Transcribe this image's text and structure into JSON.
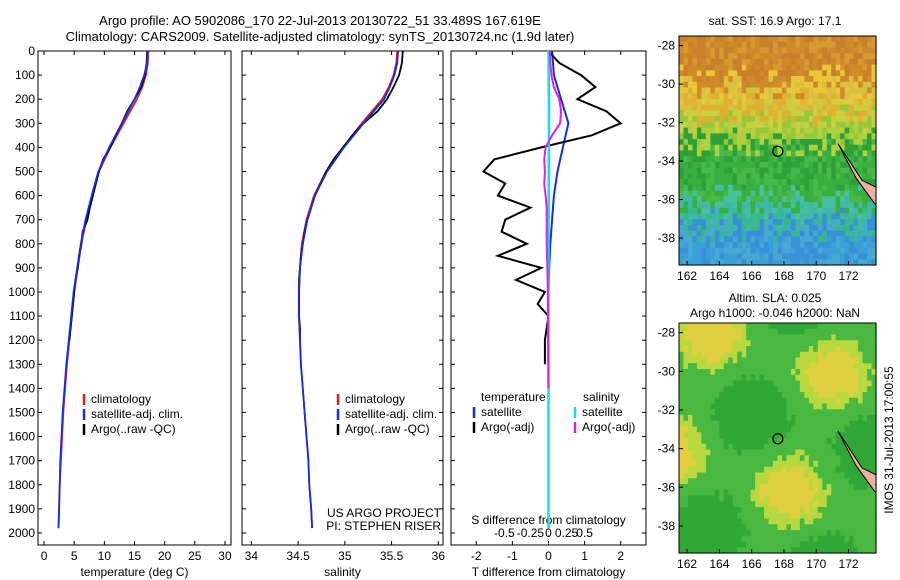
{
  "header": {
    "line1": "Argo profile: AO 5902086_170 22-Jul-2013 20130722_51 33.489S 167.619E",
    "line2": "Climatology: CARS2009. Satellite-adjusted climatology: synTS_20130724.nc (1.9d later)"
  },
  "footer": {
    "project": "US ARGO PROJECT",
    "pi": "PI: STEPHEN RISER",
    "stamp": "IMOS 31-Jul-2013 17:00:55"
  },
  "colors": {
    "climatology": "#e02020",
    "satellite": "#1030e0",
    "argo": "#000000",
    "sal_sat": "#10e0e8",
    "sal_argo": "#e020e0"
  },
  "chart_data": [
    {
      "type": "line",
      "id": "temperature",
      "xlabel": "temperature (deg C)",
      "ylim": [
        0,
        2050
      ],
      "xlim": [
        -1,
        31
      ],
      "xticks": [
        0,
        5,
        10,
        15,
        20,
        25,
        30
      ],
      "yticks": [
        0,
        100,
        200,
        300,
        400,
        500,
        600,
        700,
        800,
        900,
        1000,
        1100,
        1200,
        1300,
        1400,
        1500,
        1600,
        1700,
        1800,
        1900,
        2000
      ],
      "legend": {
        "position": "lower-right",
        "entries": [
          "climatology",
          "satellite-adj. clim.",
          "Argo(..raw -QC)"
        ]
      },
      "series": [
        {
          "name": "climatology",
          "depth": [
            0,
            50,
            100,
            150,
            200,
            300,
            400,
            500,
            600,
            700,
            800,
            900,
            1000,
            1100,
            1200,
            1300,
            1400,
            1500,
            1600,
            1700,
            1800,
            1900,
            1980
          ],
          "values": [
            17.3,
            17.2,
            16.9,
            16.3,
            15.4,
            13.2,
            11.0,
            9.1,
            8.0,
            7.0,
            6.2,
            5.6,
            5.0,
            4.6,
            4.2,
            3.8,
            3.5,
            3.2,
            3.0,
            2.8,
            2.6,
            2.5,
            2.4
          ]
        },
        {
          "name": "satellite-adj. clim.",
          "depth": [
            0,
            50,
            100,
            150,
            200,
            300,
            400,
            500,
            600,
            700,
            800,
            900,
            1000,
            1100,
            1200,
            1300,
            1400,
            1500,
            1600,
            1700,
            1800,
            1900,
            1980
          ],
          "values": [
            17.2,
            17.1,
            16.6,
            15.9,
            15.0,
            12.9,
            10.8,
            9.0,
            7.9,
            6.9,
            6.1,
            5.5,
            4.9,
            4.5,
            4.1,
            3.7,
            3.4,
            3.1,
            2.9,
            2.7,
            2.6,
            2.5,
            2.4
          ]
        },
        {
          "name": "Argo(..raw -QC)",
          "depth": [
            0,
            50,
            100,
            150,
            200,
            250,
            300,
            350,
            400,
            450,
            500,
            550,
            600,
            650,
            700,
            750,
            800,
            850,
            900,
            950,
            1000,
            1050,
            1100,
            1150,
            1200
          ],
          "values": [
            17.1,
            17.0,
            16.7,
            16.1,
            15.0,
            13.8,
            12.9,
            11.9,
            11.0,
            9.8,
            9.1,
            8.6,
            8.1,
            7.6,
            7.2,
            6.4,
            6.2,
            5.8,
            5.6,
            5.2,
            5.0,
            4.8,
            4.6,
            4.4,
            4.2
          ]
        }
      ]
    },
    {
      "type": "line",
      "id": "salinity",
      "xlabel": "salinity",
      "xlim": [
        33.9,
        36.05
      ],
      "xticks": [
        34,
        34.5,
        35,
        35.5,
        36
      ],
      "ylim": [
        0,
        2050
      ],
      "legend": {
        "position": "lower-right",
        "entries": [
          "climatology",
          "satellite-adj. clim.",
          "Argo(..raw -QC)"
        ]
      },
      "series": [
        {
          "name": "climatology",
          "depth": [
            0,
            50,
            100,
            150,
            200,
            300,
            400,
            500,
            600,
            700,
            800,
            900,
            1000,
            1100,
            1200,
            1300,
            1400,
            1500,
            1600,
            1700,
            1800,
            1900,
            1980
          ],
          "values": [
            35.56,
            35.55,
            35.52,
            35.47,
            35.4,
            35.18,
            34.98,
            34.8,
            34.67,
            34.59,
            34.54,
            34.52,
            34.51,
            34.51,
            34.52,
            34.53,
            34.55,
            34.57,
            34.59,
            34.61,
            34.62,
            34.64,
            34.65
          ]
        },
        {
          "name": "satellite-adj. clim.",
          "depth": [
            0,
            50,
            100,
            150,
            200,
            300,
            400,
            500,
            600,
            700,
            800,
            900,
            1000,
            1100,
            1200,
            1300,
            1400,
            1500,
            1600,
            1700,
            1800,
            1900,
            1980
          ],
          "values": [
            35.57,
            35.56,
            35.53,
            35.48,
            35.42,
            35.2,
            34.99,
            34.81,
            34.68,
            34.6,
            34.55,
            34.52,
            34.51,
            34.51,
            34.52,
            34.53,
            34.55,
            34.57,
            34.59,
            34.61,
            34.62,
            34.64,
            34.65
          ]
        },
        {
          "name": "Argo(..raw -QC)",
          "depth": [
            0,
            50,
            100,
            150,
            200,
            250,
            300,
            350,
            400,
            450,
            500,
            550,
            600,
            650,
            700,
            750,
            800,
            850,
            900,
            950,
            1000,
            1050,
            1100,
            1150,
            1200
          ],
          "values": [
            35.62,
            35.61,
            35.58,
            35.52,
            35.45,
            35.35,
            35.2,
            35.08,
            34.98,
            34.88,
            34.8,
            34.74,
            34.68,
            34.64,
            34.6,
            34.57,
            34.55,
            34.53,
            34.52,
            34.51,
            34.51,
            34.51,
            34.51,
            34.52,
            34.52
          ]
        }
      ]
    },
    {
      "type": "line",
      "id": "difference",
      "xlabel": "T difference from climatology",
      "xlabel_top": "S difference from climatology",
      "xlim": [
        -2.7,
        2.7
      ],
      "xticks": [
        -2,
        -1,
        0,
        1,
        2
      ],
      "xticks_s": [
        "-0.5",
        "-0.25",
        "0",
        "0.25",
        "0.5"
      ],
      "ylim": [
        0,
        2050
      ],
      "legend_left": {
        "title": "temperature",
        "entries": [
          "satellite",
          "Argo(-adj)"
        ]
      },
      "legend_right": {
        "title": "salinity",
        "entries": [
          "satellite",
          "Argo(-adj)"
        ]
      },
      "series": [
        {
          "name": "temperature satellite",
          "depth": [
            0,
            100,
            200,
            300,
            400,
            500,
            600,
            700,
            800,
            900,
            1000,
            1200,
            1500,
            1800,
            1980
          ],
          "values": [
            0.1,
            0.15,
            0.35,
            0.55,
            0.4,
            0.25,
            0.15,
            0.1,
            0.05,
            0.02,
            0,
            0,
            0,
            0,
            0
          ]
        },
        {
          "name": "temperature Argo(-adj)",
          "depth": [
            0,
            50,
            100,
            150,
            200,
            250,
            300,
            350,
            400,
            450,
            500,
            550,
            600,
            650,
            700,
            750,
            800,
            850,
            900,
            950,
            1000,
            1050,
            1100,
            1200,
            1300
          ],
          "values": [
            0,
            0.3,
            0.9,
            1.3,
            0.8,
            1.6,
            2.0,
            1.2,
            -0.2,
            -1.5,
            -1.8,
            -1.2,
            -1.4,
            -0.5,
            -1.2,
            -1.3,
            -0.6,
            -1.4,
            -0.2,
            -0.9,
            -0.1,
            -0.3,
            0,
            -0.1,
            -0.1
          ]
        },
        {
          "name": "salinity satellite",
          "depth": [
            0,
            200,
            500,
            800,
            1000,
            1500,
            1980
          ],
          "values": [
            0,
            0.01,
            0.01,
            0,
            0,
            0,
            0
          ]
        },
        {
          "name": "salinity Argo(-adj)",
          "depth": [
            0,
            50,
            100,
            150,
            200,
            250,
            300,
            350,
            400,
            450,
            500,
            550,
            600,
            650,
            700,
            800,
            900,
            1000,
            1200,
            1400
          ],
          "values": [
            0.04,
            0.05,
            0.08,
            0.15,
            0.3,
            0.35,
            0.32,
            0.1,
            -0.08,
            -0.12,
            -0.1,
            -0.12,
            -0.08,
            -0.05,
            -0.05,
            -0.05,
            -0.03,
            -0.02,
            -0.01,
            0
          ]
        }
      ]
    },
    {
      "type": "heatmap",
      "id": "sst_map",
      "title": "sat. SST: 16.9 Argo: 17.1",
      "xticks": [
        162,
        164,
        166,
        168,
        170,
        172
      ],
      "yticks": [
        -28,
        -30,
        -32,
        -34,
        -36,
        -38
      ],
      "xlim": [
        161.5,
        173.7
      ],
      "ylim": [
        -39.4,
        -27.5
      ],
      "argo_position": {
        "lon": 167.619,
        "lat": -33.489
      }
    },
    {
      "type": "heatmap",
      "id": "sla_map",
      "title": "Altim. SLA: 0.025",
      "subtitle": "Argo h1000: -0.046 h2000: NaN",
      "xticks": [
        162,
        164,
        166,
        168,
        170,
        172
      ],
      "yticks": [
        -28,
        -30,
        -32,
        -34,
        -36,
        -38
      ],
      "xlim": [
        161.5,
        173.7
      ],
      "ylim": [
        -39.4,
        -27.5
      ],
      "argo_position": {
        "lon": 167.619,
        "lat": -33.489
      }
    }
  ]
}
